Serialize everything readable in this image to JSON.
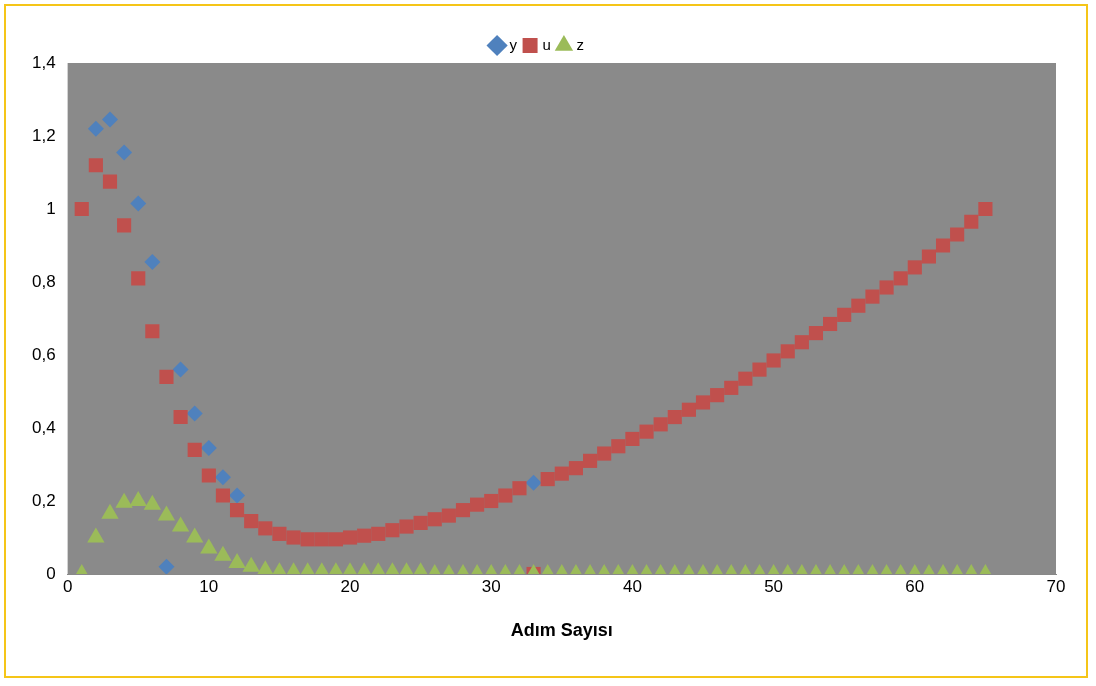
{
  "chart_data": {
    "type": "scatter",
    "xlabel": "Adım Sayısı",
    "x": [
      1,
      2,
      3,
      4,
      5,
      6,
      7,
      8,
      9,
      10,
      11,
      12,
      13,
      14,
      15,
      16,
      17,
      18,
      19,
      20,
      21,
      22,
      23,
      24,
      25,
      26,
      27,
      28,
      29,
      30,
      31,
      32,
      33,
      34,
      35,
      36,
      37,
      38,
      39,
      40,
      41,
      42,
      43,
      44,
      45,
      46,
      47,
      48,
      49,
      50,
      51,
      52,
      53,
      54,
      55,
      56,
      57,
      58,
      59,
      60,
      61,
      62,
      63,
      64,
      65
    ],
    "series": [
      {
        "name": "y",
        "marker": "diamond",
        "color": "#4f81bd",
        "values": [
          null,
          1.22,
          1.245,
          1.155,
          1.015,
          0.855,
          0.02,
          0.56,
          0.44,
          0.345,
          0.265,
          0.215,
          null,
          null,
          null,
          null,
          null,
          null,
          null,
          null,
          null,
          null,
          null,
          null,
          null,
          null,
          null,
          null,
          null,
          null,
          null,
          null,
          0.25,
          null,
          null,
          null,
          null,
          null,
          null,
          null,
          null,
          null,
          null,
          null,
          null,
          null,
          null,
          null,
          null,
          null,
          null,
          null,
          null,
          null,
          null,
          null,
          null,
          null,
          null,
          null,
          null,
          null,
          null,
          null,
          null
        ]
      },
      {
        "name": "u",
        "marker": "square",
        "color": "#c0504d",
        "values": [
          1.0,
          1.12,
          1.075,
          0.955,
          0.81,
          0.665,
          0.54,
          0.43,
          0.34,
          0.27,
          0.215,
          0.175,
          0.145,
          0.125,
          0.11,
          0.1,
          0.095,
          0.095,
          0.095,
          0.1,
          0.105,
          0.11,
          0.12,
          0.13,
          0.14,
          0.15,
          0.16,
          0.175,
          0.19,
          0.2,
          0.215,
          0.235,
          0,
          0.26,
          0.275,
          0.29,
          0.31,
          0.33,
          0.35,
          0.37,
          0.39,
          0.41,
          0.43,
          0.45,
          0.47,
          0.49,
          0.51,
          0.535,
          0.56,
          0.585,
          0.61,
          0.635,
          0.66,
          0.685,
          0.71,
          0.735,
          0.76,
          0.785,
          0.81,
          0.84,
          0.87,
          0.9,
          0.93,
          0.965,
          1.0
        ]
      },
      {
        "name": "z",
        "marker": "triangle",
        "color": "#9bbb59",
        "values": [
          0,
          0.1,
          0.165,
          0.195,
          0.2,
          0.19,
          0.16,
          0.13,
          0.1,
          0.07,
          0.05,
          0.03,
          0.02,
          0.01,
          0.005,
          0.005,
          0.005,
          0.005,
          0.005,
          0.005,
          0.005,
          0.005,
          0.005,
          0.005,
          0.005,
          0,
          0,
          0,
          0,
          0,
          0,
          0,
          0,
          0,
          0,
          0,
          0,
          0,
          0,
          0,
          0,
          0,
          0,
          0,
          0,
          0,
          0,
          0,
          0,
          0,
          0,
          0,
          0,
          0,
          0,
          0,
          0,
          0,
          0,
          0,
          0,
          0,
          0,
          0,
          0
        ]
      }
    ],
    "xlim": [
      0,
      70
    ],
    "xticks": [
      0,
      10,
      20,
      30,
      40,
      50,
      60,
      70
    ],
    "ylim": [
      0,
      1.4
    ],
    "yticks": [
      0,
      {
        "value": 0.2,
        "label": "0,2"
      },
      {
        "value": 0.4,
        "label": "0,4"
      },
      {
        "value": 0.6,
        "label": "0,6"
      },
      {
        "value": 0.8,
        "label": "0,8"
      },
      1,
      {
        "value": 1.2,
        "label": "1,2"
      },
      {
        "value": 1.4,
        "label": "1,4"
      }
    ],
    "grid": false,
    "legend": "top"
  }
}
